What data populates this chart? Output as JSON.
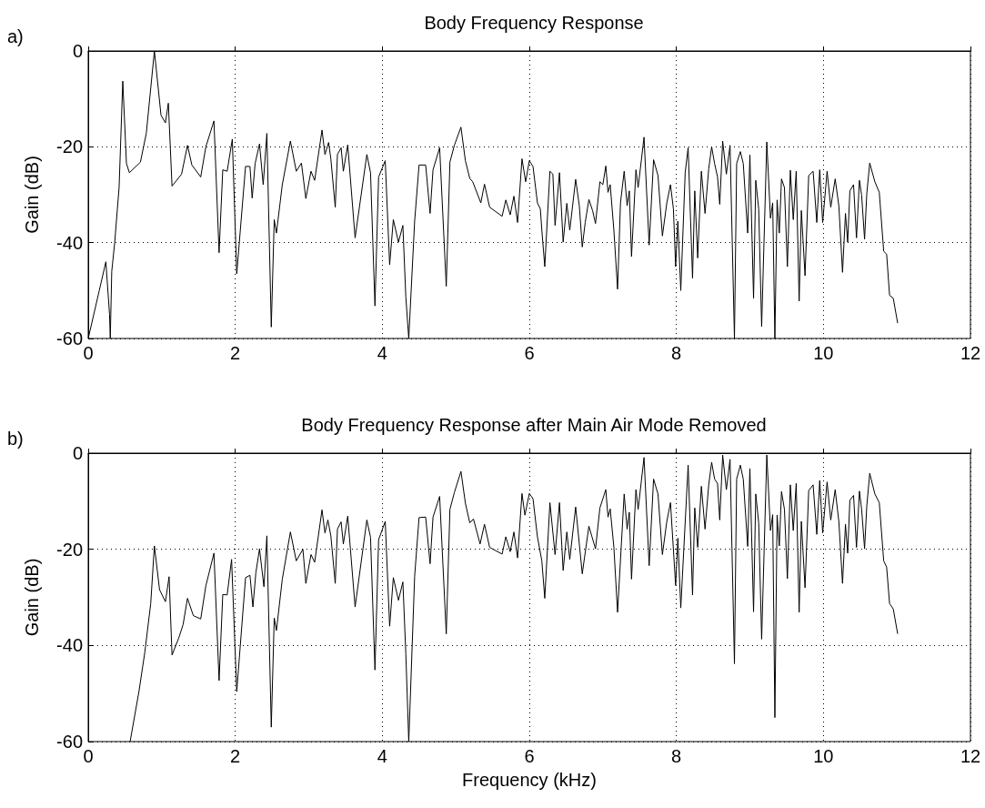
{
  "chart_data": [
    {
      "type": "line",
      "title": "Body Frequency Response",
      "ylabel": "Gain (dB)",
      "annotations": [
        "a)"
      ],
      "color": "#000000",
      "grid": true,
      "xlim": [
        0,
        12
      ],
      "xticks": [
        0,
        2,
        4,
        6,
        8,
        10,
        12
      ],
      "ylim": [
        -60,
        0
      ],
      "yticks": [
        -60,
        -40,
        -20,
        0
      ],
      "x": [
        0,
        0.15,
        0.24,
        0.29,
        0.3,
        0.32,
        0.36,
        0.42,
        0.47,
        0.52,
        0.56,
        0.71,
        0.79,
        0.9,
        0.99,
        1.05,
        1.09,
        1.14,
        1.27,
        1.35,
        1.41,
        1.53,
        1.6,
        1.71,
        1.78,
        1.83,
        1.89,
        1.96,
        2.02,
        2.14,
        2.2,
        2.23,
        2.27,
        2.33,
        2.38,
        2.43,
        2.49,
        2.53,
        2.56,
        2.64,
        2.75,
        2.83,
        2.9,
        2.96,
        3.03,
        3.08,
        3.18,
        3.22,
        3.27,
        3.3,
        3.36,
        3.39,
        3.44,
        3.47,
        3.53,
        3.63,
        3.79,
        3.84,
        3.9,
        3.95,
        4.04,
        4.1,
        4.15,
        4.22,
        4.28,
        4.32,
        4.36,
        4.44,
        4.5,
        4.59,
        4.65,
        4.69,
        4.78,
        4.87,
        4.92,
        4.98,
        5.07,
        5.13,
        5.19,
        5.23,
        5.34,
        5.39,
        5.46,
        5.63,
        5.68,
        5.74,
        5.79,
        5.84,
        5.9,
        5.95,
        6.0,
        6.05,
        6.11,
        6.15,
        6.17,
        6.21,
        6.28,
        6.32,
        6.35,
        6.41,
        6.46,
        6.51,
        6.55,
        6.63,
        6.68,
        6.72,
        6.76,
        6.81,
        6.86,
        6.9,
        6.96,
        7.0,
        7.04,
        7.07,
        7.1,
        7.15,
        7.2,
        7.24,
        7.29,
        7.33,
        7.36,
        7.39,
        7.45,
        7.48,
        7.56,
        7.63,
        7.69,
        7.75,
        7.81,
        7.87,
        7.92,
        7.96,
        7.99,
        8.02,
        8.06,
        8.12,
        8.16,
        8.22,
        8.25,
        8.29,
        8.34,
        8.39,
        8.44,
        8.48,
        8.52,
        8.56,
        8.59,
        8.63,
        8.68,
        8.73,
        8.79,
        8.82,
        8.87,
        8.91,
        8.97,
        9.0,
        9.05,
        9.08,
        9.12,
        9.16,
        9.23,
        9.28,
        9.31,
        9.34,
        9.37,
        9.4,
        9.43,
        9.47,
        9.51,
        9.55,
        9.59,
        9.63,
        9.67,
        9.7,
        9.75,
        9.8,
        9.86,
        9.91,
        9.95,
        9.99,
        10.05,
        10.1,
        10.16,
        10.21,
        10.26,
        10.3,
        10.33,
        10.36,
        10.41,
        10.45,
        10.49,
        10.52,
        10.56,
        10.59,
        10.63,
        10.7,
        10.76,
        10.82,
        10.86,
        10.9,
        10.95,
        11.01
      ],
      "values": [
        -60,
        -50,
        -44,
        -55,
        -60,
        -46,
        -40,
        -28.5,
        -6.3,
        -23.5,
        -25.4,
        -23.2,
        -17.2,
        0,
        -13.4,
        -15,
        -10.9,
        -28.2,
        -25.7,
        -19.7,
        -23.8,
        -26.3,
        -20,
        -14.6,
        -42.1,
        -24.8,
        -25.1,
        -18.4,
        -46.5,
        -24.1,
        -24.1,
        -30.7,
        -23.5,
        -19.4,
        -27.9,
        -17.2,
        -57.6,
        -35.2,
        -38,
        -27.9,
        -18.8,
        -25.1,
        -23.4,
        -30.8,
        -25.1,
        -27,
        -16.5,
        -21.6,
        -19.1,
        -22.5,
        -32.6,
        -21.6,
        -20.2,
        -25.1,
        -19.6,
        -39,
        -21.6,
        -25.4,
        -53.2,
        -26.3,
        -22.9,
        -44.6,
        -35.2,
        -39.9,
        -36.4,
        -51.3,
        -60,
        -35.5,
        -23.8,
        -23.8,
        -33.9,
        -24.8,
        -20.2,
        -49.1,
        -23.2,
        -19.7,
        -15.9,
        -22.9,
        -26.6,
        -27.3,
        -31.7,
        -27.8,
        -32.6,
        -34.5,
        -31.1,
        -34.2,
        -30.3,
        -35.8,
        -22.5,
        -27.3,
        -22.9,
        -24.1,
        -31.7,
        -33,
        -37.4,
        -45,
        -25.1,
        -25.7,
        -36.4,
        -25.4,
        -39.9,
        -31.8,
        -37.4,
        -26.8,
        -32.3,
        -40.9,
        -35.8,
        -31,
        -33.3,
        -36,
        -27.3,
        -27.9,
        -24,
        -29.5,
        -27.9,
        -37.4,
        -49.7,
        -31.7,
        -25.1,
        -32.3,
        -29.2,
        -42.9,
        -24.8,
        -28.5,
        -18,
        -40.5,
        -22.7,
        -26,
        -38.6,
        -31.7,
        -27.9,
        -33,
        -45,
        -35.5,
        -50,
        -25.4,
        -20.2,
        -47.4,
        -29.2,
        -43.2,
        -25.1,
        -33.9,
        -24.6,
        -20,
        -23.5,
        -26.3,
        -32,
        -18.8,
        -25.7,
        -19.7,
        -60,
        -23.5,
        -21,
        -23.5,
        -38,
        -21.7,
        -51.6,
        -27,
        -33,
        -57.5,
        -19,
        -34.9,
        -31.7,
        -60,
        -31.1,
        -38,
        -26.7,
        -28.5,
        -45,
        -24.9,
        -35.2,
        -25.1,
        -52.2,
        -33.3,
        -46.9,
        -26,
        -25.1,
        -35.8,
        -24.8,
        -35.8,
        -25.1,
        -32.6,
        -26.7,
        -32.3,
        -46.2,
        -33.9,
        -39.9,
        -29.2,
        -27.9,
        -39,
        -27,
        -30.1,
        -39.3,
        -29.8,
        -23.4,
        -27.3,
        -29.5,
        -41.8,
        -42.4,
        -51,
        -51.6,
        -56.8
      ]
    },
    {
      "type": "line",
      "title": "Body Frequency Response after Main Air Mode Removed",
      "xlabel": "Frequency (kHz)",
      "ylabel": "Gain (dB)",
      "annotations": [
        "b)"
      ],
      "color": "#000000",
      "grid": true,
      "xlim": [
        0,
        12
      ],
      "xticks": [
        0,
        2,
        4,
        6,
        8,
        10,
        12
      ],
      "ylim": [
        -60,
        0
      ],
      "yticks": [
        -60,
        -40,
        -20,
        0
      ],
      "x": [
        0.57,
        0.69,
        0.77,
        0.85,
        0.9,
        0.97,
        1.05,
        1.1,
        1.14,
        1.23,
        1.29,
        1.35,
        1.43,
        1.53,
        1.6,
        1.71,
        1.78,
        1.83,
        1.89,
        1.95,
        2.02,
        2.14,
        2.2,
        2.24,
        2.28,
        2.33,
        2.39,
        2.43,
        2.49,
        2.53,
        2.56,
        2.64,
        2.75,
        2.83,
        2.92,
        2.96,
        3.03,
        3.08,
        3.18,
        3.22,
        3.26,
        3.3,
        3.36,
        3.39,
        3.44,
        3.47,
        3.53,
        3.63,
        3.79,
        3.84,
        3.9,
        3.95,
        4.04,
        4.1,
        4.15,
        4.22,
        4.28,
        4.32,
        4.36,
        4.44,
        4.5,
        4.59,
        4.65,
        4.69,
        4.78,
        4.87,
        4.92,
        4.98,
        5.07,
        5.13,
        5.19,
        5.24,
        5.33,
        5.39,
        5.46,
        5.63,
        5.68,
        5.74,
        5.79,
        5.84,
        5.9,
        5.94,
        6.0,
        6.05,
        6.11,
        6.17,
        6.21,
        6.28,
        6.35,
        6.41,
        6.46,
        6.51,
        6.55,
        6.63,
        6.72,
        6.81,
        6.9,
        6.96,
        7.04,
        7.07,
        7.1,
        7.15,
        7.2,
        7.29,
        7.33,
        7.36,
        7.39,
        7.45,
        7.48,
        7.56,
        7.63,
        7.69,
        7.75,
        7.81,
        7.87,
        7.92,
        7.99,
        8.02,
        8.06,
        8.16,
        8.22,
        8.25,
        8.29,
        8.34,
        8.39,
        8.44,
        8.48,
        8.52,
        8.56,
        8.59,
        8.63,
        8.68,
        8.73,
        8.79,
        8.82,
        8.87,
        8.91,
        8.97,
        9.0,
        9.05,
        9.08,
        9.12,
        9.16,
        9.23,
        9.28,
        9.31,
        9.34,
        9.37,
        9.4,
        9.43,
        9.47,
        9.51,
        9.55,
        9.59,
        9.63,
        9.67,
        9.7,
        9.75,
        9.8,
        9.86,
        9.91,
        9.95,
        9.99,
        10.05,
        10.1,
        10.16,
        10.21,
        10.26,
        10.3,
        10.33,
        10.36,
        10.41,
        10.45,
        10.49,
        10.52,
        10.56,
        10.59,
        10.63,
        10.7,
        10.76,
        10.82,
        10.86,
        10.9,
        10.95,
        11.01
      ],
      "values": [
        -60,
        -49.6,
        -41.4,
        -31.3,
        -19.3,
        -28.4,
        -30.9,
        -25.7,
        -42,
        -38.5,
        -35.7,
        -30.2,
        -33.8,
        -34.5,
        -27.6,
        -20.8,
        -47.3,
        -29.4,
        -29.5,
        -22.1,
        -49.6,
        -25.9,
        -25.4,
        -32,
        -24.9,
        -19.9,
        -27.8,
        -17.2,
        -57,
        -34.3,
        -36.9,
        -26.2,
        -16.4,
        -22.4,
        -20,
        -27.1,
        -21.1,
        -22.7,
        -11.8,
        -16.6,
        -13.9,
        -17.2,
        -27.1,
        -15.8,
        -14.3,
        -18.9,
        -13.1,
        -32,
        -13.9,
        -17.5,
        -45.1,
        -18,
        -14.2,
        -36,
        -25.9,
        -30.6,
        -26.8,
        -41.7,
        -60,
        -25.6,
        -13.4,
        -13.3,
        -23,
        -13.3,
        -9,
        -37.6,
        -11.7,
        -8.2,
        -3.8,
        -10.4,
        -14.5,
        -13.7,
        -18.9,
        -14.8,
        -19.6,
        -21,
        -17.4,
        -20.5,
        -16.4,
        -21.8,
        -8.4,
        -12.9,
        -8.4,
        -9.5,
        -17.4,
        -22.4,
        -30.2,
        -10.3,
        -21.1,
        -10.3,
        -24.4,
        -16.4,
        -22.1,
        -11.2,
        -25.1,
        -15.2,
        -19.9,
        -11.4,
        -7.6,
        -13.3,
        -11.6,
        -19.6,
        -33.1,
        -8.5,
        -15.8,
        -12.3,
        -26.2,
        -7.6,
        -11.7,
        -0.9,
        -23.4,
        -5.4,
        -8.5,
        -21.1,
        -14.2,
        -10.3,
        -27.5,
        -17.7,
        -32.2,
        -2.5,
        -29.5,
        -11.4,
        -19.6,
        -6.9,
        -15.8,
        -6.6,
        -1.9,
        -5.4,
        -6.3,
        -13.9,
        -0.4,
        -7.6,
        -1.3,
        -43.8,
        -5.4,
        -2.5,
        -5.4,
        -19.4,
        -3.2,
        -33,
        -8.5,
        -14.5,
        -38.7,
        -0.4,
        -16.1,
        -12.8,
        -55,
        -12.9,
        -19.3,
        -8,
        -11.7,
        -26.1,
        -6.6,
        -16.1,
        -6.3,
        -33.1,
        -14.2,
        -28,
        -7.8,
        -6.6,
        -16.9,
        -5.7,
        -16.6,
        -6,
        -13.9,
        -7.6,
        -14.2,
        -27.1,
        -14.8,
        -20.8,
        -9.8,
        -8.8,
        -19.6,
        -7.9,
        -11.7,
        -19.9,
        -11,
        -4.2,
        -8.5,
        -10.3,
        -22.4,
        -23.7,
        -31.3,
        -32.4,
        -37.6
      ]
    }
  ]
}
